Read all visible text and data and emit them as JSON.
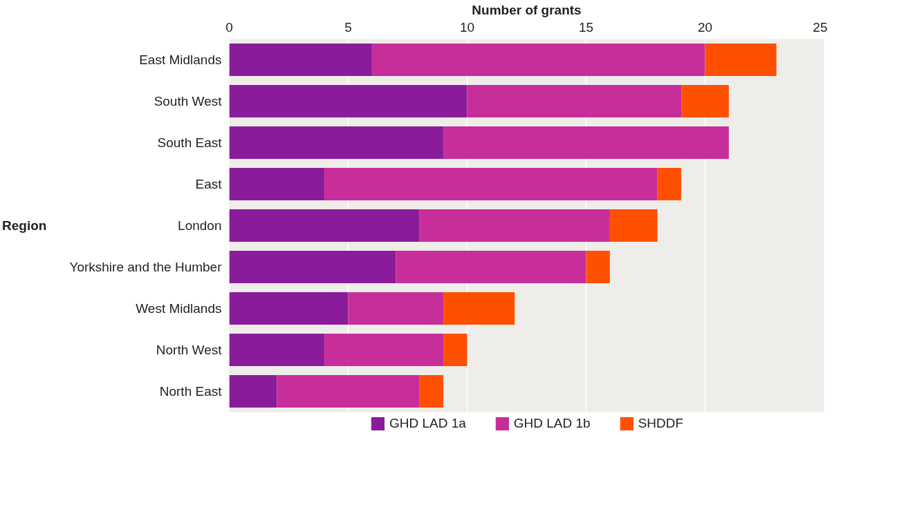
{
  "chart_data": {
    "type": "bar",
    "orientation": "horizontal",
    "stacked": true,
    "xlabel": "Number of grants",
    "ylabel": "Region",
    "categories": [
      "East Midlands",
      "South West",
      "South East",
      "East",
      "London",
      "Yorkshire and the Humber",
      "West Midlands",
      "North West",
      "North East"
    ],
    "series": [
      {
        "name": "GHD LAD 1a",
        "color": "#8a1c9c",
        "values": [
          6,
          10,
          9,
          4,
          8,
          7,
          5,
          4,
          2
        ]
      },
      {
        "name": "GHD LAD 1b",
        "color": "#c72e9a",
        "values": [
          14,
          9,
          12,
          14,
          8,
          8,
          4,
          5,
          6
        ]
      },
      {
        "name": "SHDDF",
        "color": "#ff5000",
        "values": [
          3,
          2,
          0,
          1,
          2,
          1,
          3,
          1,
          1
        ]
      }
    ],
    "xlim": [
      0,
      25
    ],
    "xticks": [
      0,
      5,
      10,
      15,
      20,
      25
    ],
    "grid": "x",
    "legend": "bottom"
  }
}
